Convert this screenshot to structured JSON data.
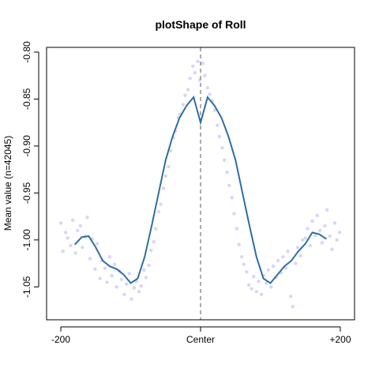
{
  "chart_data": {
    "type": "scatter",
    "title": "plotShape of Roll",
    "xlabel": "",
    "ylabel": "Mean value (n=42045)",
    "xlim": [
      -200,
      200
    ],
    "ylim": [
      -1.085,
      -0.795
    ],
    "x_ticks": [
      {
        "value": -200,
        "label": "-200"
      },
      {
        "value": 0,
        "label": "Center"
      },
      {
        "value": 200,
        "label": "+200"
      }
    ],
    "y_ticks": [
      {
        "value": -0.8,
        "label": "-0.80"
      },
      {
        "value": -0.85,
        "label": "-0.85"
      },
      {
        "value": -0.9,
        "label": "-0.90"
      },
      {
        "value": -0.95,
        "label": "-0.95"
      },
      {
        "value": -1.0,
        "label": "-1.00"
      },
      {
        "value": -1.05,
        "label": "-1.05"
      }
    ],
    "center_line": {
      "x": 0,
      "style": "dashed",
      "color": "#808080"
    },
    "point_color": "#c8c8f6",
    "line_color": "#2f6ea3",
    "smooth_line": {
      "x": [
        -180,
        -170,
        -160,
        -150,
        -140,
        -130,
        -120,
        -110,
        -100,
        -90,
        -80,
        -70,
        -60,
        -50,
        -40,
        -30,
        -20,
        -10,
        0,
        10,
        20,
        30,
        40,
        50,
        60,
        70,
        80,
        90,
        100,
        110,
        120,
        130,
        140,
        150,
        160,
        170,
        180
      ],
      "y": [
        -1.005,
        -0.997,
        -0.996,
        -1.008,
        -1.022,
        -1.028,
        -1.031,
        -1.037,
        -1.046,
        -1.041,
        -1.018,
        -0.985,
        -0.95,
        -0.915,
        -0.89,
        -0.87,
        -0.857,
        -0.848,
        -0.875,
        -0.848,
        -0.857,
        -0.87,
        -0.89,
        -0.915,
        -0.95,
        -0.985,
        -1.018,
        -1.041,
        -1.046,
        -1.037,
        -1.028,
        -1.022,
        -1.012,
        -1.004,
        -0.992,
        -0.994,
        -0.999
      ]
    },
    "scatter_points": {
      "x": [
        -200,
        -197,
        -193,
        -190,
        -186,
        -183,
        -179,
        -176,
        -172,
        -169,
        -165,
        -162,
        -158,
        -155,
        -151,
        -148,
        -144,
        -141,
        -137,
        -134,
        -130,
        -127,
        -123,
        -120,
        -116,
        -113,
        -109,
        -106,
        -102,
        -99,
        -95,
        -92,
        -88,
        -85,
        -81,
        -78,
        -74,
        -71,
        -67,
        -64,
        -60,
        -57,
        -53,
        -50,
        -46,
        -43,
        -39,
        -36,
        -32,
        -29,
        -25,
        -22,
        -18,
        -15,
        -11,
        -8,
        -4,
        -1,
        3,
        6,
        10,
        13,
        17,
        20,
        24,
        27,
        31,
        34,
        38,
        41,
        45,
        48,
        52,
        55,
        59,
        62,
        66,
        69,
        73,
        76,
        80,
        83,
        87,
        90,
        94,
        97,
        101,
        104,
        108,
        111,
        115,
        118,
        122,
        125,
        129,
        132,
        136,
        139,
        143,
        146,
        150,
        153,
        157,
        160,
        164,
        167,
        171,
        174,
        178,
        181,
        185,
        188,
        192,
        195,
        199
      ],
      "y": [
        -0.982,
        -1.012,
        -0.992,
        -0.998,
        -1.006,
        -0.979,
        -1.014,
        -0.99,
        -0.985,
        -1.008,
        -0.996,
        -0.976,
        -1.02,
        -0.999,
        -1.031,
        -1.004,
        -1.041,
        -1.022,
        -1.03,
        -1.045,
        -1.018,
        -1.038,
        -1.026,
        -1.05,
        -1.033,
        -1.042,
        -1.058,
        -1.047,
        -1.036,
        -1.063,
        -1.051,
        -1.044,
        -1.055,
        -1.049,
        -1.032,
        -1.04,
        -1.027,
        -1.011,
        -1.002,
        -0.988,
        -0.97,
        -0.962,
        -0.945,
        -0.932,
        -0.922,
        -0.905,
        -0.891,
        -0.884,
        -0.87,
        -0.866,
        -0.856,
        -0.846,
        -0.84,
        -0.828,
        -0.815,
        -0.822,
        -0.81,
        -0.83,
        -0.812,
        -0.825,
        -0.838,
        -0.845,
        -0.852,
        -0.862,
        -0.878,
        -0.89,
        -0.902,
        -0.915,
        -0.928,
        -0.942,
        -0.955,
        -0.972,
        -0.988,
        -1.005,
        -1.018,
        -1.026,
        -1.034,
        -1.048,
        -1.052,
        -1.039,
        -1.055,
        -1.044,
        -1.058,
        -1.038,
        -1.046,
        -1.032,
        -1.05,
        -1.028,
        -1.04,
        -1.022,
        -1.035,
        -1.018,
        -1.03,
        -1.012,
        -1.06,
        -1.071,
        -1.025,
        -1.008,
        -1.017,
        -1.0,
        -0.998,
        -0.988,
        -1.006,
        -0.98,
        -0.995,
        -0.974,
        -0.99,
        -1.003,
        -0.985,
        -0.968,
        -0.996,
        -1.01,
        -0.982,
        -1.0,
        -0.992
      ]
    }
  }
}
